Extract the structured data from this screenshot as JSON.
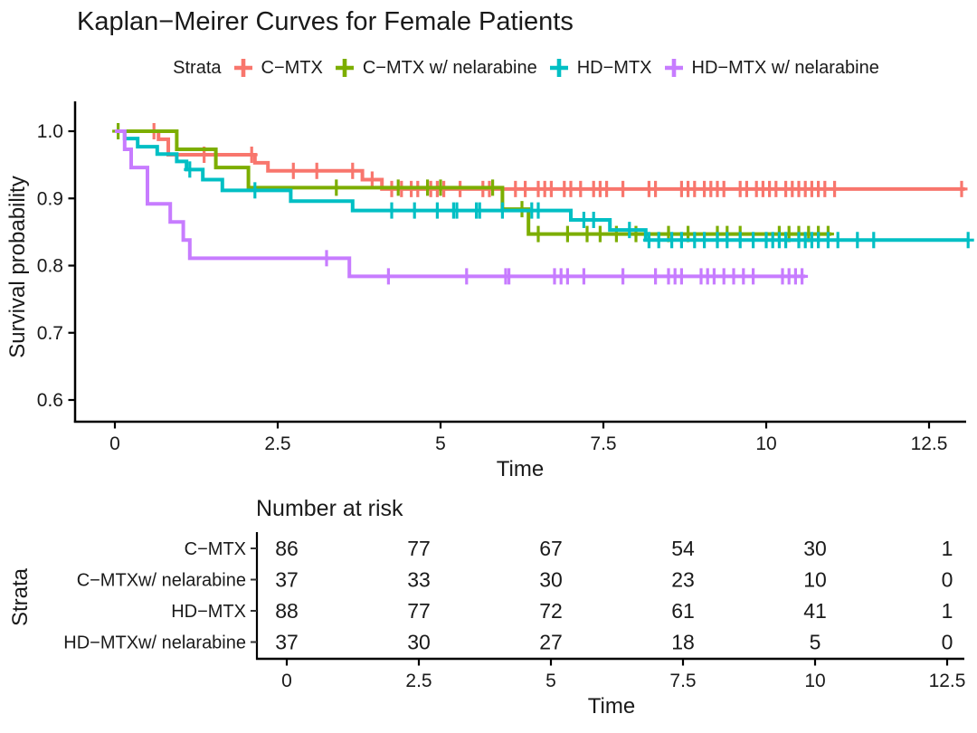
{
  "chart_data": {
    "type": "line",
    "subtype": "kaplan-meier-step",
    "title": "Kaplan−Meirer Curves for Female Patients",
    "legend_title": "Strata",
    "legend_position": "top",
    "xlabel": "Time",
    "ylabel": "Survival probability",
    "grid": false,
    "xlim": [
      0,
      13.2
    ],
    "ylim": [
      0.6,
      1.0
    ],
    "xticks": {
      "values": [
        0,
        2.5,
        5,
        7.5,
        10,
        12.5
      ],
      "labels": [
        "0",
        "2.5",
        "5",
        "7.5",
        "10",
        "12.5"
      ]
    },
    "yticks": {
      "values": [
        1.0,
        0.9,
        0.8,
        0.7,
        0.6
      ],
      "labels": [
        "1.0",
        "0.9",
        "0.8",
        "0.7",
        "0.6"
      ]
    },
    "series": [
      {
        "name": "C−MTX",
        "color": "#F8766D",
        "steps": [
          [
            0,
            1.0
          ],
          [
            0.67,
            0.988
          ],
          [
            0.82,
            0.965
          ],
          [
            2.15,
            0.953
          ],
          [
            2.35,
            0.941
          ],
          [
            3.8,
            0.928
          ],
          [
            4.1,
            0.914
          ]
        ],
        "end_time": 13.05,
        "censor_times": [
          0.6,
          1.37,
          2.1,
          2.74,
          3.1,
          3.65,
          3.95,
          4.25,
          4.4,
          4.55,
          4.65,
          4.85,
          4.95,
          5.05,
          5.3,
          5.65,
          5.75,
          6.15,
          6.3,
          6.5,
          6.6,
          6.7,
          6.9,
          7.0,
          7.15,
          7.35,
          7.45,
          7.55,
          7.8,
          8.2,
          8.3,
          8.7,
          8.8,
          8.9,
          9.05,
          9.15,
          9.25,
          9.35,
          9.6,
          9.7,
          9.85,
          9.95,
          10.05,
          10.15,
          10.3,
          10.4,
          10.5,
          10.6,
          10.7,
          10.8,
          10.9,
          11.05,
          13.0
        ]
      },
      {
        "name": "C−MTX w/ nelarabine",
        "color": "#7CAE00",
        "steps": [
          [
            0,
            1.0
          ],
          [
            0.95,
            0.973
          ],
          [
            1.55,
            0.946
          ],
          [
            2.05,
            0.916
          ],
          [
            5.95,
            0.884
          ],
          [
            6.35,
            0.847
          ]
        ],
        "end_time": 11.0,
        "censor_times": [
          0.05,
          3.4,
          4.35,
          4.8,
          5.0,
          5.8,
          6.25,
          6.5,
          6.95,
          7.25,
          7.45,
          7.7,
          8.0,
          8.5,
          8.8,
          9.25,
          9.4,
          9.6,
          10.2,
          10.35,
          10.5,
          10.65,
          10.8,
          10.95
        ]
      },
      {
        "name": "HD−MTX",
        "color": "#00BFC4",
        "steps": [
          [
            0,
            1.0
          ],
          [
            0.15,
            0.989
          ],
          [
            0.35,
            0.977
          ],
          [
            0.65,
            0.966
          ],
          [
            0.95,
            0.955
          ],
          [
            1.1,
            0.943
          ],
          [
            1.35,
            0.928
          ],
          [
            1.65,
            0.912
          ],
          [
            2.7,
            0.896
          ],
          [
            3.65,
            0.882
          ],
          [
            7.0,
            0.868
          ],
          [
            7.6,
            0.853
          ],
          [
            8.15,
            0.838
          ]
        ],
        "end_time": 13.1,
        "censor_times": [
          1.15,
          2.15,
          4.25,
          4.6,
          4.95,
          5.2,
          5.25,
          5.55,
          5.6,
          5.95,
          6.4,
          6.5,
          7.2,
          7.35,
          7.9,
          8.2,
          8.35,
          8.55,
          8.7,
          8.9,
          9.05,
          9.25,
          9.4,
          9.6,
          9.8,
          10.0,
          10.1,
          10.2,
          10.3,
          10.5,
          10.6,
          10.7,
          10.8,
          10.95,
          11.1,
          11.4,
          11.65,
          13.1
        ]
      },
      {
        "name": "HD−MTX w/ nelarabine",
        "color": "#C77CFF",
        "steps": [
          [
            0,
            1.0
          ],
          [
            0.15,
            0.973
          ],
          [
            0.25,
            0.946
          ],
          [
            0.5,
            0.892
          ],
          [
            0.85,
            0.865
          ],
          [
            1.05,
            0.838
          ],
          [
            1.15,
            0.811
          ],
          [
            3.6,
            0.784
          ]
        ],
        "end_time": 10.6,
        "censor_times": [
          3.25,
          4.2,
          5.4,
          6.0,
          6.05,
          6.75,
          6.85,
          6.95,
          7.2,
          7.8,
          8.3,
          8.5,
          8.6,
          8.7,
          9.0,
          9.1,
          9.2,
          9.35,
          9.5,
          9.65,
          9.8,
          10.25,
          10.35,
          10.45,
          10.55
        ]
      }
    ],
    "risk_table": {
      "title": "Number at risk",
      "ylabel": "Strata",
      "xlabel": "Time",
      "times": [
        0,
        2.5,
        5,
        7.5,
        10,
        12.5
      ],
      "tick_labels": [
        "0",
        "2.5",
        "5",
        "7.5",
        "10",
        "12.5"
      ],
      "rows": [
        {
          "label": "C−MTX",
          "color": "#F8766D",
          "counts": [
            86,
            77,
            67,
            54,
            30,
            1
          ]
        },
        {
          "label": "C−MTXw/ nelarabine",
          "color": "#7CAE00",
          "counts": [
            37,
            33,
            30,
            23,
            10,
            0
          ]
        },
        {
          "label": "HD−MTX",
          "color": "#00BFC4",
          "counts": [
            88,
            77,
            72,
            61,
            41,
            1
          ]
        },
        {
          "label": "HD−MTXw/ nelarabine",
          "color": "#C77CFF",
          "counts": [
            37,
            30,
            27,
            18,
            5,
            0
          ]
        }
      ]
    }
  }
}
